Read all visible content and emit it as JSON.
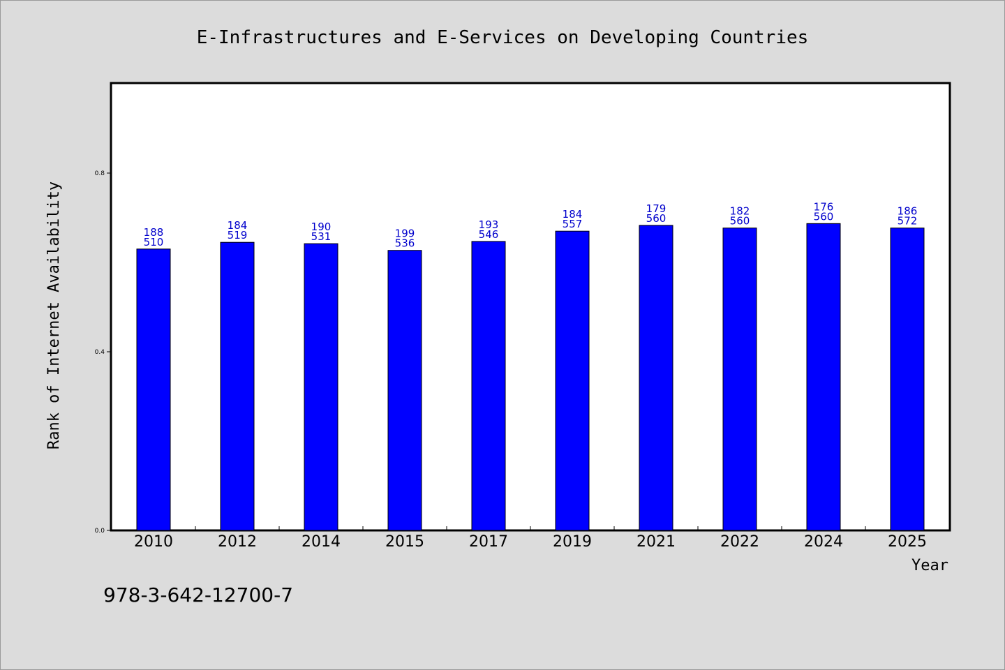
{
  "chart_data": {
    "type": "bar",
    "title": "E-Infrastructures and E-Services on Developing Countries",
    "xlabel": "Year",
    "ylabel": "Rank of Internet Availability",
    "categories": [
      "2010",
      "2012",
      "2014",
      "2015",
      "2017",
      "2019",
      "2021",
      "2022",
      "2024",
      "2025"
    ],
    "values": [
      0.63,
      0.645,
      0.642,
      0.627,
      0.647,
      0.67,
      0.683,
      0.677,
      0.687,
      0.677
    ],
    "bar_labels_top": [
      "188",
      "184",
      "190",
      "199",
      "193",
      "184",
      "179",
      "182",
      "176",
      "186"
    ],
    "bar_labels_bottom": [
      "510",
      "519",
      "531",
      "536",
      "546",
      "557",
      "560",
      "560",
      "560",
      "572"
    ],
    "yticks": [
      "0.0",
      "0.4",
      "0.8"
    ],
    "ylim": [
      0,
      1.0
    ],
    "grid": false,
    "bar_color": "#0000ff",
    "label_color": "#0000cc"
  },
  "footer": {
    "isbn": "978-3-642-12700-7"
  }
}
